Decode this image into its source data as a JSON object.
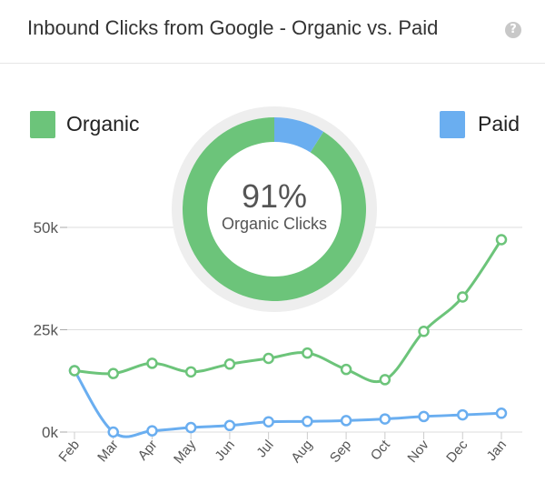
{
  "header": {
    "title": "Inbound Clicks from Google - Organic vs. Paid",
    "help_icon": "question-circle-icon"
  },
  "colors": {
    "organic": "#6cc47a",
    "paid": "#6aaef0",
    "donut_bg": "#eeeeee",
    "grid": "#dddddd"
  },
  "chart_data": [
    {
      "type": "line",
      "x": [
        "Feb",
        "Mar",
        "Apr",
        "May",
        "Jun",
        "Jul",
        "Aug",
        "Sep",
        "Oct",
        "Nov",
        "Dec",
        "Jan"
      ],
      "series": [
        {
          "name": "Organic",
          "values": [
            15000,
            14300,
            16800,
            14700,
            16600,
            18000,
            19300,
            15300,
            12800,
            24600,
            33000,
            47000
          ]
        },
        {
          "name": "Paid",
          "values": [
            15000,
            0,
            300,
            1100,
            1600,
            2500,
            2600,
            2800,
            3200,
            3800,
            4200,
            4600
          ]
        }
      ],
      "y_ticks": [
        "0k",
        "25k",
        "50k"
      ],
      "y_tick_values": [
        0,
        25000,
        50000
      ],
      "ylim": [
        0,
        50000
      ],
      "grid": true,
      "legend": "top"
    },
    {
      "type": "pie",
      "labels": [
        "Organic",
        "Paid"
      ],
      "values": [
        91,
        9
      ],
      "center_value": "91%",
      "center_label": "Organic Clicks"
    }
  ]
}
